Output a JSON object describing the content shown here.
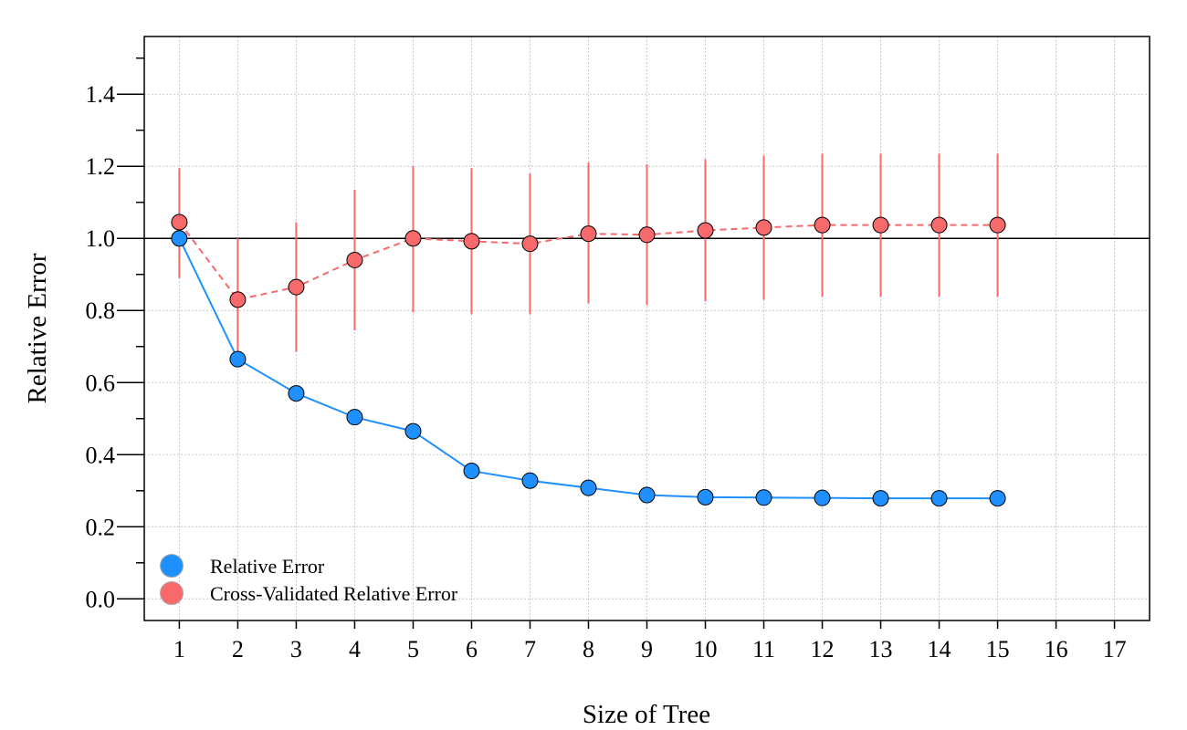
{
  "chart_data": {
    "type": "line",
    "xlabel": "Size of Tree",
    "ylabel": "Relative Error",
    "xlim": [
      0.4,
      17.6
    ],
    "ylim": [
      -0.06,
      1.56
    ],
    "x_ticks": [
      "1",
      "2",
      "3",
      "4",
      "5",
      "6",
      "7",
      "8",
      "9",
      "10",
      "11",
      "12",
      "13",
      "14",
      "15",
      "16",
      "17"
    ],
    "y_ticks": [
      "0.0",
      "0.2",
      "0.4",
      "0.6",
      "0.8",
      "1.0",
      "1.2",
      "1.4"
    ],
    "grid": true,
    "reference_line": 1.0,
    "legend_position": "bottom-left",
    "series": [
      {
        "name": "Relative Error",
        "color": "#1E90FF",
        "line_style": "solid",
        "x": [
          1,
          2,
          3,
          4,
          5,
          6,
          7,
          8,
          9,
          10,
          11,
          12,
          13,
          14,
          15
        ],
        "values": [
          1.0,
          0.665,
          0.57,
          0.504,
          0.465,
          0.355,
          0.328,
          0.308,
          0.288,
          0.282,
          0.281,
          0.28,
          0.279,
          0.279,
          0.279
        ]
      },
      {
        "name": "Cross-Validated Relative Error",
        "color": "#F8696B",
        "line_style": "dashed",
        "x": [
          1,
          2,
          3,
          4,
          5,
          6,
          7,
          8,
          9,
          10,
          11,
          12,
          13,
          14,
          15
        ],
        "values": [
          1.045,
          0.83,
          0.865,
          0.94,
          1.0,
          0.992,
          0.985,
          1.013,
          1.01,
          1.022,
          1.03,
          1.037,
          1.037,
          1.037,
          1.037
        ],
        "error_low": [
          0.89,
          0.66,
          0.685,
          0.745,
          0.795,
          0.79,
          0.79,
          0.82,
          0.815,
          0.825,
          0.83,
          0.838,
          0.838,
          0.838,
          0.838
        ],
        "error_high": [
          1.195,
          1.0,
          1.045,
          1.135,
          1.2,
          1.195,
          1.18,
          1.21,
          1.205,
          1.22,
          1.23,
          1.235,
          1.235,
          1.235,
          1.235
        ]
      }
    ]
  }
}
